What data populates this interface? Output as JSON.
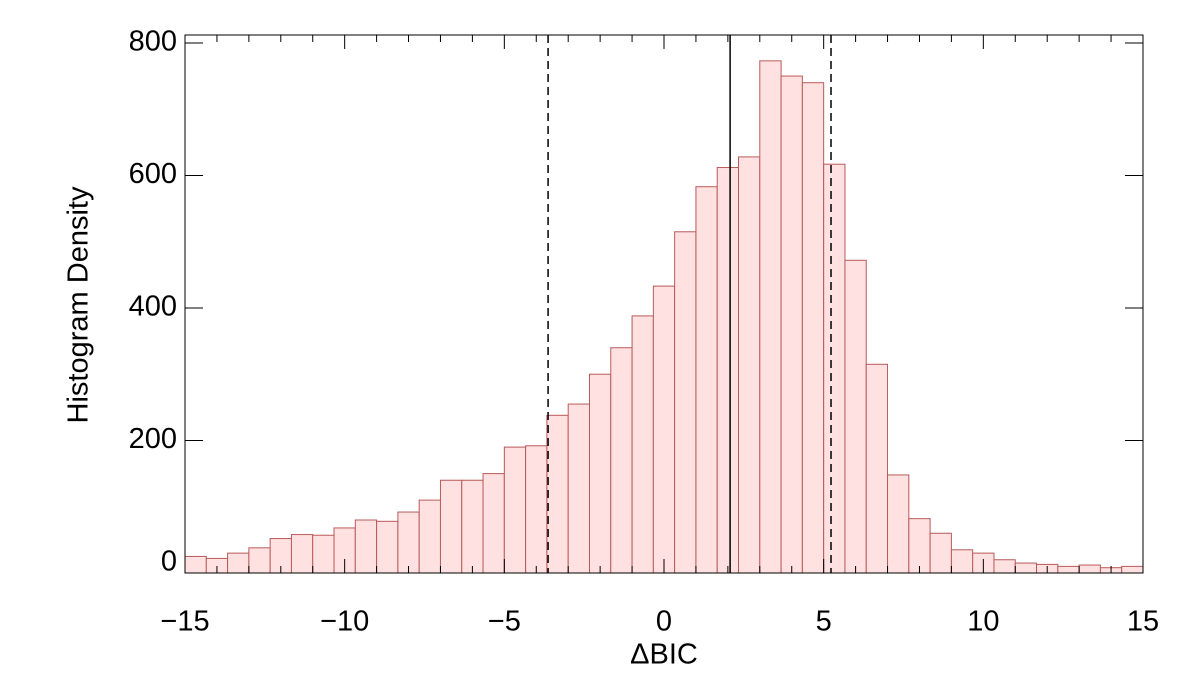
{
  "chart_data": {
    "type": "histogram",
    "xlabel": "ΔBIC",
    "ylabel": "Histogram Density",
    "bins": [
      -15,
      -14.3333,
      -13.6667,
      -13,
      -12.3333,
      -11.6667,
      -11,
      -10.3333,
      -9.6667,
      -9,
      -8.3333,
      -7.6667,
      -7,
      -6.3333,
      -5.6667,
      -5,
      -4.3333,
      -3.6667,
      -3,
      -2.3333,
      -1.6667,
      -1,
      -0.3333,
      0.3333,
      1,
      1.6667,
      2.3333,
      3,
      3.6667,
      4.3333,
      5,
      5.6667,
      6.3333,
      7,
      7.6667,
      8.3333,
      9,
      9.6667,
      10.3333,
      11,
      11.6667,
      12.3333,
      13,
      13.6667,
      14.3333,
      15
    ],
    "values": [
      25,
      22,
      30,
      38,
      52,
      58,
      57,
      68,
      80,
      78,
      92,
      110,
      140,
      140,
      150,
      190,
      192,
      238,
      255,
      300,
      340,
      388,
      433,
      515,
      583,
      612,
      628,
      773,
      750,
      740,
      617,
      472,
      315,
      148,
      82,
      60,
      35,
      30,
      20,
      15,
      13,
      10,
      12,
      8,
      10
    ],
    "color": "#ffe1e1",
    "edgecolor": "#b85a5a",
    "reference_lines": [
      {
        "x": -3.63,
        "style": "dashed"
      },
      {
        "x": 2.07,
        "style": "solid"
      },
      {
        "x": 5.23,
        "style": "dashed"
      }
    ],
    "xlim": [
      -15,
      15
    ],
    "ylim": [
      0,
      812
    ],
    "xticks": [
      {
        "value": -15,
        "label": "−15"
      },
      {
        "value": -10,
        "label": "−10"
      },
      {
        "value": -5,
        "label": "−5"
      },
      0,
      5,
      10,
      15
    ],
    "yticks": [
      0,
      200,
      400,
      600,
      800
    ]
  }
}
